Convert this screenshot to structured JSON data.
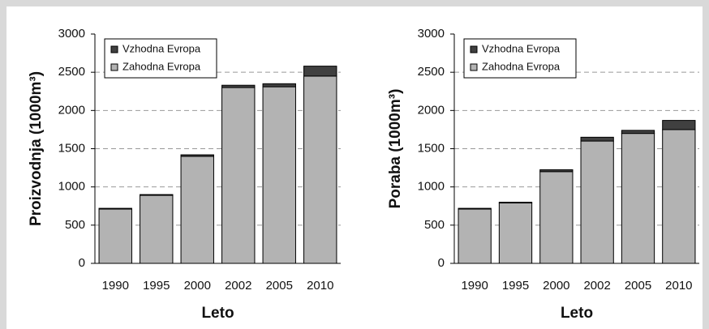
{
  "chart_data": [
    {
      "type": "stacked_bar",
      "xlabel": "Leto",
      "ylabel": "Proizvodnja (1000m³)",
      "categories": [
        "1990",
        "1995",
        "2000",
        "2002",
        "2005",
        "2010"
      ],
      "series": [
        {
          "name": "Vzhodna Evropa",
          "color": "#404040",
          "values": [
            10,
            10,
            20,
            30,
            40,
            130
          ]
        },
        {
          "name": "Zahodna Evropa",
          "color": "#b3b3b3",
          "values": [
            710,
            890,
            1400,
            2300,
            2310,
            2450
          ]
        }
      ],
      "ylim": [
        0,
        3000
      ],
      "yticks": [
        0,
        500,
        1000,
        1500,
        2000,
        2500,
        3000
      ],
      "grid": true,
      "legend": "upper left"
    },
    {
      "type": "stacked_bar",
      "xlabel": "Leto",
      "ylabel": "Poraba (1000m³)",
      "categories": [
        "1990",
        "1995",
        "2000",
        "2002",
        "2005",
        "2010"
      ],
      "series": [
        {
          "name": "Vzhodna Evropa",
          "color": "#404040",
          "values": [
            10,
            10,
            25,
            50,
            40,
            120
          ]
        },
        {
          "name": "Zahodna Evropa",
          "color": "#b3b3b3",
          "values": [
            710,
            790,
            1200,
            1600,
            1700,
            1750
          ]
        }
      ],
      "ylim": [
        0,
        3000
      ],
      "yticks": [
        0,
        500,
        1000,
        1500,
        2000,
        2500,
        3000
      ],
      "grid": true,
      "legend": "upper left"
    }
  ]
}
